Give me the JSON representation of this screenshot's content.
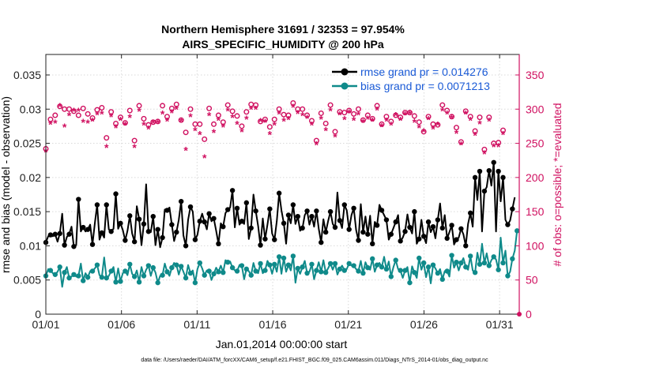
{
  "chart_data": {
    "type": "line",
    "title_line1": "Northern Hemisphere 31691 / 32353 = 97.954%",
    "title_line2": "AIRS_SPECIFIC_HUMIDITY @ 200 hPa",
    "xlabel": "Jan.01,2014 00:00:00 start",
    "ylabel_left": "rmse and bias (model - observation)",
    "ylabel_right": "# of obs: o=possible; *=evaluated",
    "footer": "data file: /Users/raeder/DAI/ATM_forcXX/CAM6_setup/f.e21.FHIST_BGC.f09_025.CAM6assim.011/Diags_NTrS_2014-01/obs_diag_output.nc",
    "xlim": [
      1,
      32.3
    ],
    "ylim_left": [
      0,
      0.038
    ],
    "ylim_right": [
      0,
      380
    ],
    "x_ticks": [
      1,
      6,
      11,
      16,
      21,
      26,
      31
    ],
    "x_tick_labels": [
      "01/01",
      "01/06",
      "01/11",
      "01/16",
      "01/21",
      "01/26",
      "01/31"
    ],
    "y_left_ticks": [
      0,
      0.005,
      0.01,
      0.015,
      0.02,
      0.025,
      0.03,
      0.035
    ],
    "y_left_tick_labels": [
      "0",
      "0.005",
      "0.01",
      "0.015",
      "0.02",
      "0.025",
      "0.03",
      "0.035"
    ],
    "y_right_ticks": [
      0,
      50,
      100,
      150,
      200,
      250,
      300,
      350
    ],
    "y_right_tick_labels": [
      "0",
      "50",
      "100",
      "150",
      "200",
      "250",
      "300",
      "350"
    ],
    "series": [
      {
        "name": "rmse grand pr = 0.014276",
        "color": "#000000",
        "axis": "left",
        "values": [
          0.0105,
          0.0114,
          0.0116,
          0.0114,
          0.0117,
          0.0106,
          0.0118,
          0.0147,
          0.0101,
          0.0113,
          0.0117,
          0.0128,
          0.0099,
          0.0101,
          0.0168,
          0.0121,
          0.0127,
          0.0121,
          0.0124,
          0.0131,
          0.0102,
          0.0133,
          0.016,
          0.0109,
          0.0119,
          0.0112,
          0.016,
          0.0124,
          0.0121,
          0.0125,
          0.0176,
          0.0125,
          0.0133,
          0.0123,
          0.0108,
          0.0122,
          0.0144,
          0.0118,
          0.0106,
          0.0158,
          0.0139,
          0.0101,
          0.0132,
          0.019,
          0.0121,
          0.012,
          0.0143,
          0.0101,
          0.0124,
          0.0098,
          0.0112,
          0.0153,
          0.0152,
          0.0156,
          0.0131,
          0.0107,
          0.012,
          0.0138,
          0.0165,
          0.0115,
          0.01,
          0.0138,
          0.0157,
          0.015,
          0.0109,
          0.0116,
          0.0136,
          0.0147,
          0.0135,
          0.0124,
          0.0147,
          0.0136,
          0.014,
          0.0122,
          0.0103,
          0.0133,
          0.0128,
          0.0148,
          0.0153,
          0.0156,
          0.0181,
          0.0127,
          0.0155,
          0.0131,
          0.0136,
          0.0132,
          0.0163,
          0.011,
          0.0126,
          0.0175,
          0.0151,
          0.0129,
          0.0101,
          0.014,
          0.011,
          0.0131,
          0.0154,
          0.0118,
          0.0109,
          0.0136,
          0.0177,
          0.0152,
          0.0133,
          0.0103,
          0.0145,
          0.0133,
          0.016,
          0.0132,
          0.0143,
          0.0122,
          0.0126,
          0.0145,
          0.0151,
          0.0131,
          0.0143,
          0.0128,
          0.0151,
          0.0125,
          0.0105,
          0.0139,
          0.012,
          0.0136,
          0.015,
          0.0132,
          0.0127,
          0.0178,
          0.0137,
          0.0126,
          0.016,
          0.0152,
          0.0124,
          0.0145,
          0.0155,
          0.0123,
          0.0108,
          0.0161,
          0.012,
          0.0143,
          0.0117,
          0.0144,
          0.0103,
          0.0135,
          0.013,
          0.016,
          0.0152,
          0.0145,
          0.0138,
          0.0109,
          0.0117,
          0.0126,
          0.0135,
          0.0145,
          0.0107,
          0.0112,
          0.0121,
          0.0146,
          0.0127,
          0.0118,
          0.015,
          0.0103,
          0.011,
          0.0138,
          0.0114,
          0.0104,
          0.0135,
          0.012,
          0.0128,
          0.0111,
          0.0138,
          0.0162,
          0.0126,
          0.0145,
          0.0111,
          0.012,
          0.013,
          0.0102,
          0.0109,
          0.0112,
          0.0125,
          0.0117,
          0.01,
          0.0132,
          0.0148,
          0.0128,
          0.02,
          0.0167,
          0.0209,
          0.0121,
          0.018,
          0.0186,
          0.021,
          0.0188,
          0.0222,
          0.0121,
          0.0209,
          0.0165,
          0.02,
          0.0138,
          0.0131,
          0.0137,
          0.0154,
          0.0171
        ]
      },
      {
        "name": "bias grand pr = 0.0071213",
        "color": "#0f8a8a",
        "axis": "left",
        "values": [
          0.0056,
          0.0066,
          0.0064,
          0.006,
          0.0058,
          0.0062,
          0.0069,
          0.004,
          0.0061,
          0.0069,
          0.0053,
          0.0055,
          0.0058,
          0.0055,
          0.0056,
          0.0074,
          0.0049,
          0.006,
          0.0054,
          0.0063,
          0.0063,
          0.0067,
          0.0072,
          0.0057,
          0.0054,
          0.0083,
          0.0053,
          0.0056,
          0.0063,
          0.0069,
          0.0047,
          0.0067,
          0.0048,
          0.006,
          0.0063,
          0.0057,
          0.0073,
          0.0059,
          0.0055,
          0.0064,
          0.0047,
          0.0069,
          0.0056,
          0.0065,
          0.0071,
          0.0056,
          0.0068,
          0.0061,
          0.0046,
          0.0056,
          0.0057,
          0.0074,
          0.0062,
          0.0056,
          0.0068,
          0.0075,
          0.0072,
          0.0058,
          0.007,
          0.0062,
          0.0053,
          0.0072,
          0.006,
          0.0064,
          0.0046,
          0.0066,
          0.0075,
          0.0067,
          0.0057,
          0.0064,
          0.0063,
          0.005,
          0.0059,
          0.0068,
          0.0062,
          0.0071,
          0.0061,
          0.0079,
          0.0076,
          0.0077,
          0.0068,
          0.0064,
          0.0063,
          0.0072,
          0.0071,
          0.0051,
          0.0066,
          0.0063,
          0.0057,
          0.0075,
          0.0063,
          0.006,
          0.0074,
          0.006,
          0.0064,
          0.0078,
          0.0072,
          0.0059,
          0.0073,
          0.0062,
          0.0084,
          0.0059,
          0.0082,
          0.0062,
          0.0072,
          0.0064,
          0.0085,
          0.0046,
          0.0067,
          0.0059,
          0.0069,
          0.0078,
          0.006,
          0.0062,
          0.0073,
          0.0051,
          0.0064,
          0.0076,
          0.0062,
          0.0079,
          0.0061,
          0.0067,
          0.0074,
          0.0065,
          0.0074,
          0.0058,
          0.0066,
          0.0071,
          0.0064,
          0.0066,
          0.0074,
          0.0071,
          0.0071,
          0.0066,
          0.0063,
          0.0078,
          0.006,
          0.0076,
          0.0068,
          0.0065,
          0.0081,
          0.0062,
          0.0072,
          0.0075,
          0.0069,
          0.0084,
          0.0066,
          0.0077,
          0.0055,
          0.0069,
          0.0079,
          0.0066,
          0.0064,
          0.0053,
          0.0064,
          0.0069,
          0.0046,
          0.007,
          0.0061,
          0.0053,
          0.0082,
          0.0065,
          0.0075,
          0.0054,
          0.0069,
          0.0045,
          0.0072,
          0.0067,
          0.006,
          0.0066,
          0.0051,
          0.0063,
          0.0063,
          0.0055,
          0.0086,
          0.0068,
          0.0076,
          0.0064,
          0.0075,
          0.0082,
          0.0069,
          0.0065,
          0.0085,
          0.0064,
          0.0061,
          0.009,
          0.0073,
          0.0103,
          0.0075,
          0.0089,
          0.0071,
          0.0079,
          0.0084,
          0.008,
          0.0065,
          0.0112,
          0.0075,
          0.0093,
          0.0056,
          0.0062,
          0.0081,
          0.0093,
          0.0122
        ]
      }
    ],
    "obs_possible": {
      "marker": "o",
      "color": "#d01060",
      "axis": "right",
      "values": [
        242,
        280,
        285,
        278,
        291,
        268,
        304,
        298,
        300,
        296,
        300,
        289,
        297,
        299,
        291,
        283,
        301,
        259,
        293,
        255,
        287,
        296,
        299,
        288,
        302,
        291,
        258,
        302,
        296,
        290,
        279,
        290,
        288,
        213,
        280,
        299,
        298,
        262,
        254,
        282,
        305,
        247,
        286,
        309,
        277,
        283,
        281,
        284,
        282,
        257,
        305,
        300,
        289,
        283,
        301,
        300,
        307,
        287,
        284,
        282,
        266,
        296,
        300,
        304,
        278,
        301,
        278,
        264,
        256,
        283,
        301,
        293,
        278,
        299,
        291,
        267,
        281,
        291,
        306,
        293,
        297,
        285,
        290,
        287,
        275,
        310,
        296,
        281,
        307,
        298,
        306,
        272,
        282,
        294,
        285,
        294,
        274,
        291,
        285,
        272,
        300,
        307,
        292,
        290,
        291,
        298,
        309,
        277,
        300,
        263,
        300,
        292,
        291,
        273,
        283,
        303,
        254,
        278,
        294,
        285,
        279,
        295,
        306,
        304,
        267,
        289,
        296,
        258,
        295,
        283,
        298,
        308,
        293,
        279,
        300,
        297,
        284,
        262,
        291,
        292,
        286,
        302,
        305,
        269,
        278,
        282,
        289,
        259,
        282,
        294,
        291,
        302,
        288,
        268,
        295,
        302,
        295,
        279,
        290,
        288,
        281,
        300,
        267,
        288,
        289,
        259,
        278,
        292,
        277,
        286,
        306,
        295,
        298,
        278,
        289,
        270,
        273,
        264,
        252,
        263,
        297,
        281,
        289,
        259,
        268,
        249,
        288,
        241,
        241,
        238,
        288,
        284,
        250,
        278,
        251,
        256,
        269,
        229
      ]
    },
    "obs_evaluated": {
      "marker": "*",
      "color": "#d01060",
      "axis": "right",
      "values": [
        237,
        262,
        277,
        283,
        279,
        209,
        303,
        276,
        273,
        289,
        290,
        235,
        296,
        289,
        296,
        254,
        280,
        239,
        279,
        229,
        282,
        290,
        291,
        268,
        292,
        283,
        243,
        294,
        288,
        272,
        272,
        288,
        283,
        199,
        276,
        290,
        287,
        241,
        243,
        277,
        296,
        232,
        276,
        300,
        270,
        270,
        279,
        283,
        279,
        249,
        292,
        287,
        282,
        271,
        294,
        299,
        299,
        278,
        281,
        278,
        239,
        287,
        288,
        287,
        268,
        294,
        262,
        239,
        228,
        265,
        290,
        285,
        265,
        293,
        283,
        258,
        273,
        290,
        297,
        279,
        287,
        279,
        277,
        278,
        266,
        303,
        285,
        271,
        299,
        293,
        299,
        267,
        281,
        278,
        280,
        284,
        262,
        284,
        276,
        258,
        292,
        299,
        282,
        285,
        284,
        288,
        302,
        269,
        293,
        244,
        290,
        287,
        286,
        265,
        276,
        296,
        247,
        271,
        285,
        279,
        268,
        290,
        297,
        298,
        259,
        282,
        291,
        250,
        284,
        280,
        294,
        295,
        283,
        270,
        291,
        294,
        280,
        253,
        285,
        287,
        282,
        295,
        298,
        262,
        274,
        279,
        282,
        240,
        276,
        283,
        290,
        293,
        283,
        256,
        291,
        297,
        292,
        270,
        280,
        278,
        272,
        292,
        266,
        287,
        284,
        251,
        270,
        280,
        276,
        277,
        297,
        290,
        292,
        277,
        286,
        265,
        264,
        248,
        247,
        253,
        292,
        275,
        283,
        252,
        261,
        242,
        278,
        233,
        234,
        232,
        282,
        276,
        244,
        274,
        244,
        251,
        262,
        216
      ]
    }
  }
}
